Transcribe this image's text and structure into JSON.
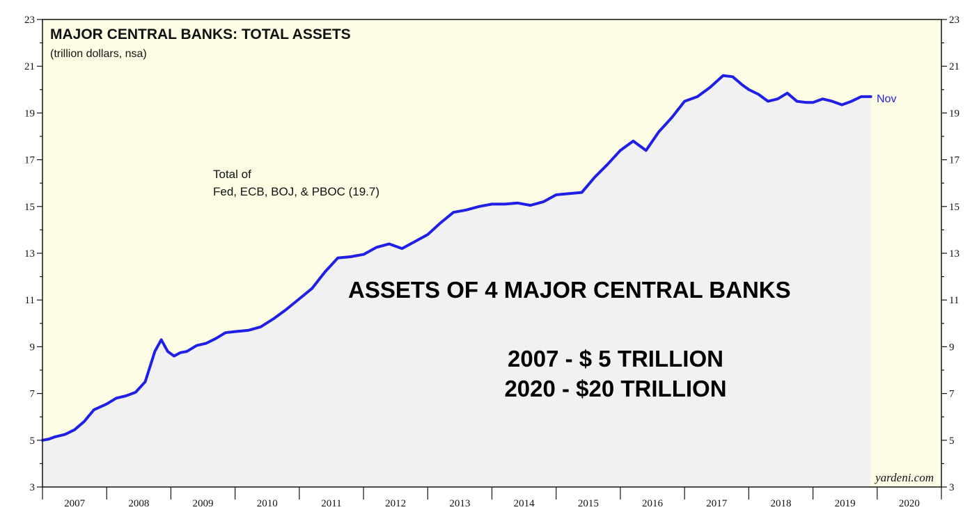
{
  "chart_data": {
    "type": "area",
    "title": "MAJOR CENTRAL BANKS: TOTAL ASSETS",
    "subtitle": "(trillion dollars, nsa)",
    "series_note_line1": "Total of",
    "series_note_line2": "Fed, ECB, BOJ, & PBOC (19.7)",
    "end_label": "Nov",
    "headline": "ASSETS OF 4 MAJOR CENTRAL BANKS",
    "callout_line1": "2007 - $ 5 TRILLION",
    "callout_line2": "2020 - $20 TRILLION",
    "source": "yardeni.com",
    "ylim": [
      3,
      23
    ],
    "y_ticks": [
      "3",
      "5",
      "7",
      "9",
      "11",
      "13",
      "15",
      "17",
      "19",
      "21",
      "23"
    ],
    "xlim": [
      2007,
      2021
    ],
    "x_ticks": [
      "2007",
      "2008",
      "2009",
      "2010",
      "2011",
      "2012",
      "2013",
      "2014",
      "2015",
      "2016",
      "2017",
      "2018",
      "2019",
      "2020"
    ],
    "grid": false,
    "colors": {
      "line": "#1f1fe6",
      "area_fill": "#f1f1f1",
      "background": "#fdfde6"
    },
    "x": [
      2007.0,
      2007.1,
      2007.2,
      2007.35,
      2007.5,
      2007.65,
      2007.8,
      2008.0,
      2008.15,
      2008.3,
      2008.45,
      2008.6,
      2008.75,
      2008.85,
      2008.95,
      2009.05,
      2009.15,
      2009.25,
      2009.4,
      2009.55,
      2009.7,
      2009.85,
      2010.0,
      2010.2,
      2010.4,
      2010.6,
      2010.8,
      2011.0,
      2011.2,
      2011.4,
      2011.6,
      2011.8,
      2012.0,
      2012.2,
      2012.4,
      2012.6,
      2012.8,
      2013.0,
      2013.2,
      2013.4,
      2013.6,
      2013.8,
      2014.0,
      2014.2,
      2014.4,
      2014.6,
      2014.8,
      2015.0,
      2015.2,
      2015.4,
      2015.6,
      2015.8,
      2016.0,
      2016.2,
      2016.4,
      2016.6,
      2016.8,
      2017.0,
      2017.2,
      2017.4,
      2017.6,
      2017.75,
      2017.9,
      2018.0,
      2018.15,
      2018.3,
      2018.45,
      2018.6,
      2018.75,
      2018.9,
      2019.0,
      2019.15,
      2019.3,
      2019.45,
      2019.6,
      2019.75,
      2019.9
    ],
    "values": [
      5.0,
      5.05,
      5.15,
      5.25,
      5.45,
      5.8,
      6.3,
      6.55,
      6.8,
      6.9,
      7.05,
      7.5,
      8.8,
      9.3,
      8.8,
      8.6,
      8.75,
      8.8,
      9.05,
      9.15,
      9.35,
      9.6,
      9.65,
      9.7,
      9.85,
      10.2,
      10.6,
      11.05,
      11.5,
      12.2,
      12.8,
      12.85,
      12.95,
      13.25,
      13.4,
      13.2,
      13.5,
      13.8,
      14.3,
      14.75,
      14.85,
      15.0,
      15.1,
      15.1,
      15.15,
      15.05,
      15.2,
      15.5,
      15.55,
      15.6,
      16.25,
      16.8,
      17.4,
      17.8,
      17.4,
      18.2,
      18.8,
      19.5,
      19.7,
      20.1,
      20.6,
      20.55,
      20.2,
      20.0,
      19.8,
      19.5,
      19.6,
      19.85,
      19.5,
      19.45,
      19.45,
      19.6,
      19.5,
      19.35,
      19.5,
      19.7,
      19.7
    ]
  }
}
